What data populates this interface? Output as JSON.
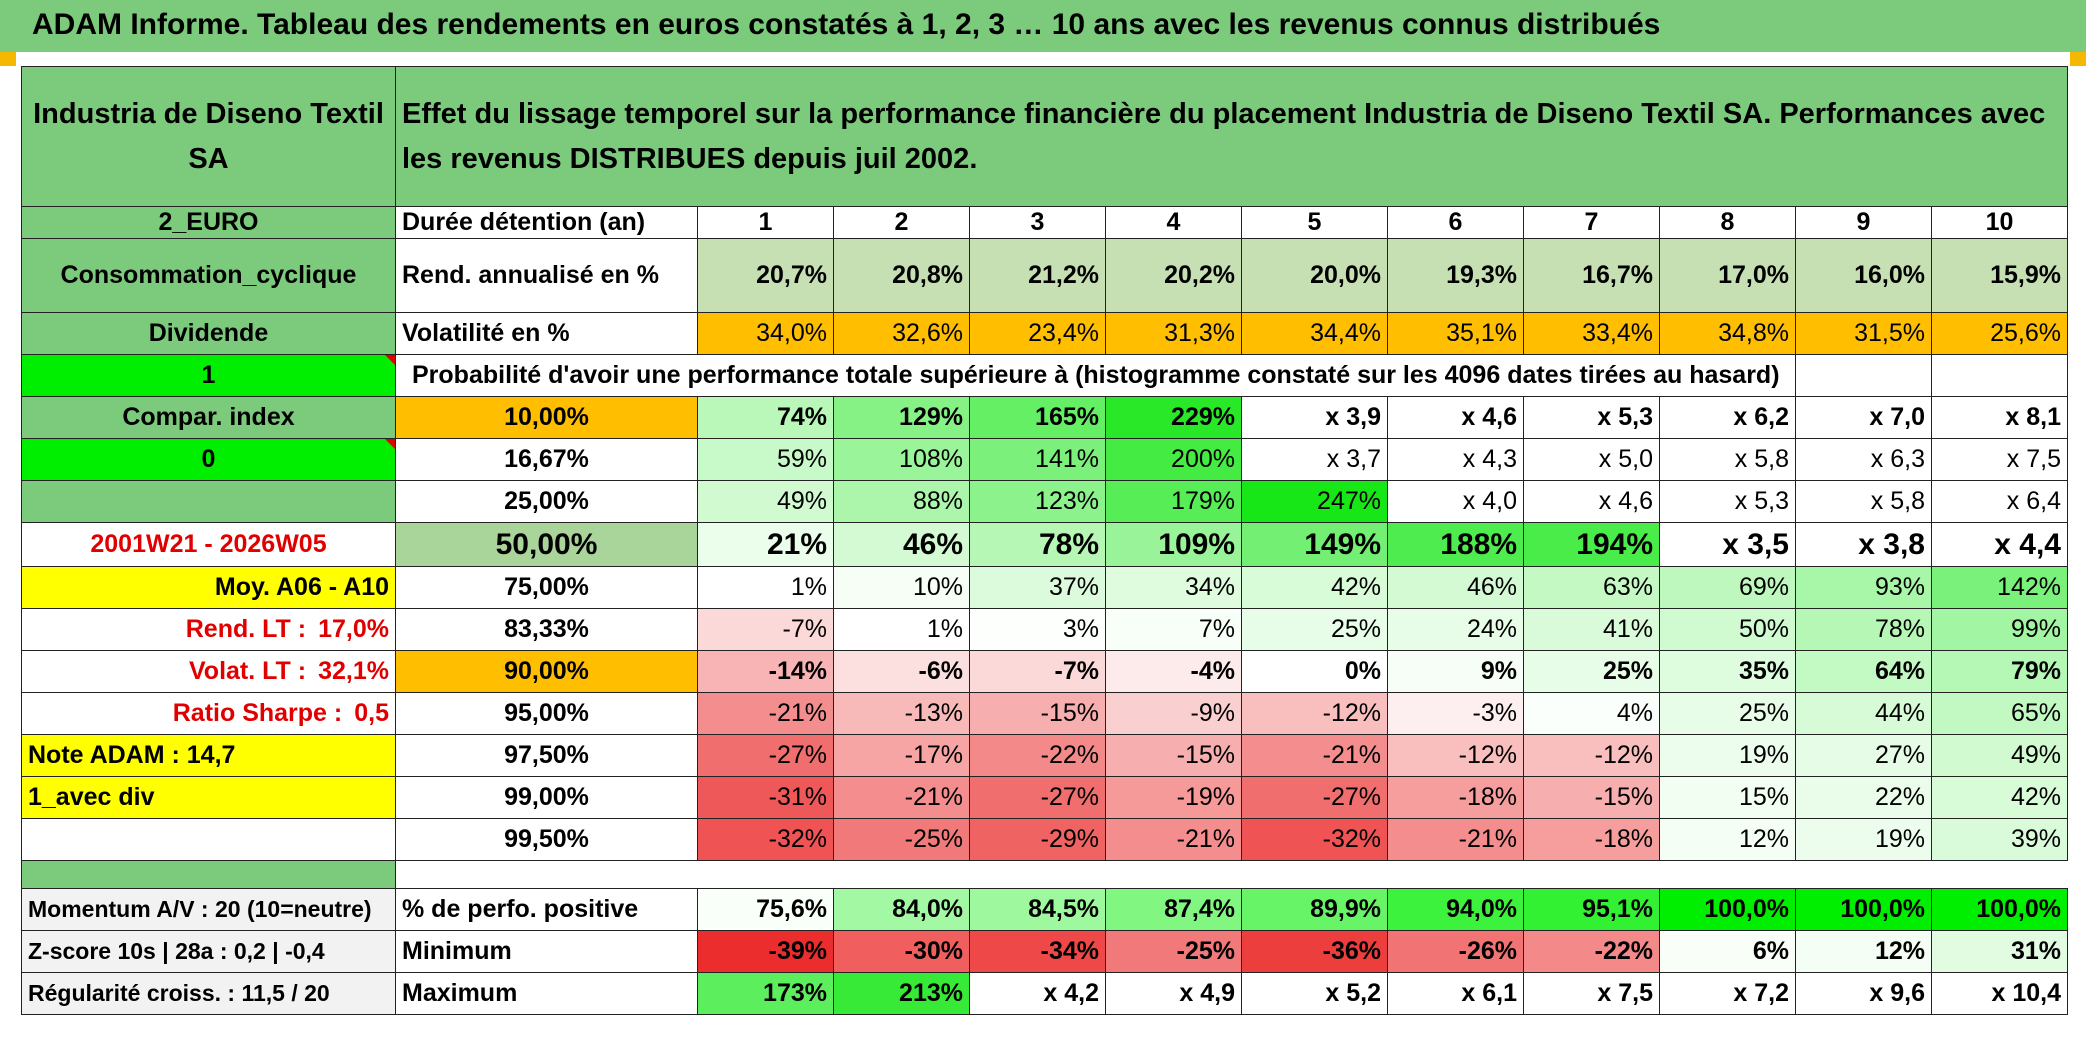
{
  "title": "ADAM Informe. Tableau des rendements en euros constatés à 1, 2, 3 … 10 ans avec les revenus connus distribués",
  "colors": {
    "title_bg": "#7ccb7c",
    "header_green": "#7ccb7c",
    "mid_green": "#a9d49a",
    "bright_green": "#00ee00",
    "orange": "#ffbf00",
    "yellow": "#ffff00",
    "label_red": "#e00000"
  },
  "header": {
    "company": "Industria de Diseno Textil SA",
    "description": "Effet du lissage temporel sur la performance financière du placement Industria de Diseno Textil SA. Performances avec les revenus DISTRIBUES depuis juil 2002."
  },
  "side": {
    "currency": "2_EURO",
    "sector": "Consommation_cyclique",
    "dividend_label": "Dividende",
    "flag_1": "1",
    "compar_index": "Compar. index",
    "flag_0": "0",
    "period": "2001W21 - 2026W05",
    "moy_label": "Moy. A06 - A10",
    "rend_lt_label": "Rend. LT :",
    "rend_lt_value": "17,0%",
    "volat_lt_label": "Volat. LT :",
    "volat_lt_value": "32,1%",
    "sharpe_label": "Ratio Sharpe :",
    "sharpe_value": "0,5",
    "note_adam": "Note ADAM : 14,7",
    "avec_div": "1_avec div",
    "momentum": "Momentum A/V : 20 (10=neutre)",
    "zscore": "Z-score 10s | 28a : 0,2 | -0,4",
    "regularite": "Régularité croiss. : 11,5 / 20"
  },
  "table": {
    "duration_label": "Durée détention (an)",
    "years": [
      "1",
      "2",
      "3",
      "4",
      "5",
      "6",
      "7",
      "8",
      "9",
      "10"
    ],
    "rend_label": "Rend. annualisé en %",
    "rend": [
      "20,7%",
      "20,8%",
      "21,2%",
      "20,2%",
      "20,0%",
      "19,3%",
      "16,7%",
      "17,0%",
      "16,0%",
      "15,9%"
    ],
    "vol_label": "Volatilité en %",
    "vol": [
      "34,0%",
      "32,6%",
      "23,4%",
      "31,3%",
      "34,4%",
      "35,1%",
      "33,4%",
      "34,8%",
      "31,5%",
      "25,6%"
    ],
    "prob_label": "Probabilité d'avoir une performance totale supérieure à (histogramme constaté sur les 4096 dates tirées au hasard)",
    "quantiles": [
      {
        "q": "10,00%",
        "v": [
          "74%",
          "129%",
          "165%",
          "229%",
          "x 3,9",
          "x 4,6",
          "x 5,3",
          "x 6,2",
          "x 7,0",
          "x 8,1"
        ]
      },
      {
        "q": "16,67%",
        "v": [
          "59%",
          "108%",
          "141%",
          "200%",
          "x 3,7",
          "x 4,3",
          "x 5,0",
          "x 5,8",
          "x 6,3",
          "x 7,5"
        ]
      },
      {
        "q": "25,00%",
        "v": [
          "49%",
          "88%",
          "123%",
          "179%",
          "247%",
          "x 4,0",
          "x 4,6",
          "x 5,3",
          "x 5,8",
          "x 6,4"
        ]
      },
      {
        "q": "50,00%",
        "v": [
          "21%",
          "46%",
          "78%",
          "109%",
          "149%",
          "188%",
          "194%",
          "x 3,5",
          "x 3,8",
          "x 4,4"
        ]
      },
      {
        "q": "75,00%",
        "v": [
          "1%",
          "10%",
          "37%",
          "34%",
          "42%",
          "46%",
          "63%",
          "69%",
          "93%",
          "142%"
        ]
      },
      {
        "q": "83,33%",
        "v": [
          "-7%",
          "1%",
          "3%",
          "7%",
          "25%",
          "24%",
          "41%",
          "50%",
          "78%",
          "99%"
        ]
      },
      {
        "q": "90,00%",
        "v": [
          "-14%",
          "-6%",
          "-7%",
          "-4%",
          "0%",
          "9%",
          "25%",
          "35%",
          "64%",
          "79%"
        ]
      },
      {
        "q": "95,00%",
        "v": [
          "-21%",
          "-13%",
          "-15%",
          "-9%",
          "-12%",
          "-3%",
          "4%",
          "25%",
          "44%",
          "65%"
        ]
      },
      {
        "q": "97,50%",
        "v": [
          "-27%",
          "-17%",
          "-22%",
          "-15%",
          "-21%",
          "-12%",
          "-12%",
          "19%",
          "27%",
          "49%"
        ]
      },
      {
        "q": "99,00%",
        "v": [
          "-31%",
          "-21%",
          "-27%",
          "-19%",
          "-27%",
          "-18%",
          "-15%",
          "15%",
          "22%",
          "42%"
        ]
      },
      {
        "q": "99,50%",
        "v": [
          "-32%",
          "-25%",
          "-29%",
          "-21%",
          "-32%",
          "-21%",
          "-18%",
          "12%",
          "19%",
          "39%"
        ]
      }
    ],
    "pos_label": "% de perfo. positive",
    "pos": [
      "75,6%",
      "84,0%",
      "84,5%",
      "87,4%",
      "89,9%",
      "94,0%",
      "95,1%",
      "100,0%",
      "100,0%",
      "100,0%"
    ],
    "min_label": "Minimum",
    "min": [
      "-39%",
      "-30%",
      "-34%",
      "-25%",
      "-36%",
      "-26%",
      "-22%",
      "6%",
      "12%",
      "31%"
    ],
    "max_label": "Maximum",
    "max": [
      "173%",
      "213%",
      "x 4,2",
      "x 4,9",
      "x 5,2",
      "x 6,1",
      "x 7,5",
      "x 7,2",
      "x 9,6",
      "x 10,4"
    ]
  }
}
